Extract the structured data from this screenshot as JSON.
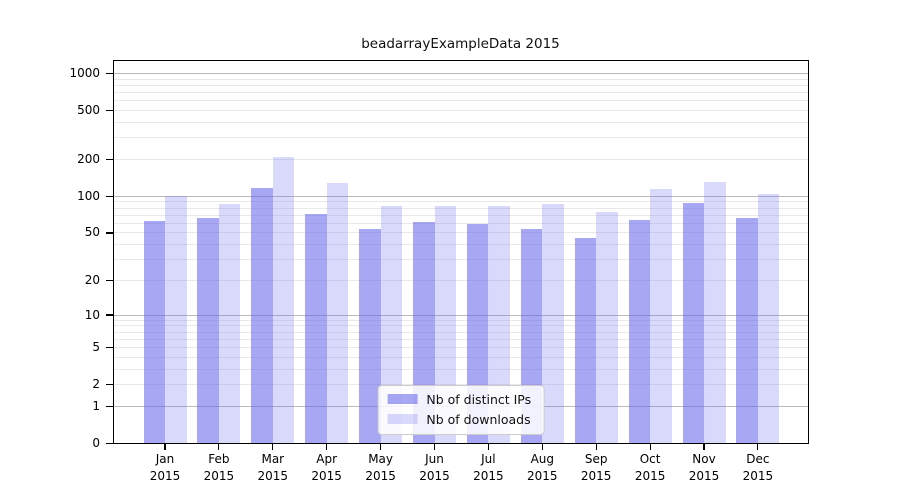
{
  "figure": {
    "background": "#ffffff"
  },
  "chart_data": {
    "type": "bar",
    "title": "beadarrayExampleData 2015",
    "x_categories": [
      "Jan",
      "Feb",
      "Mar",
      "Apr",
      "May",
      "Jun",
      "Jul",
      "Aug",
      "Sep",
      "Oct",
      "Nov",
      "Dec"
    ],
    "x_tick_second_line": "2015",
    "series": [
      {
        "name": "Nb of distinct IPs",
        "color": "#6464eb",
        "opacity": 0.57,
        "values": [
          63,
          67,
          116,
          71,
          54,
          62,
          59,
          54,
          45,
          64,
          88,
          67
        ]
      },
      {
        "name": "Nb of downloads",
        "color": "#7878f0",
        "opacity": 0.28,
        "values": [
          101,
          87,
          210,
          129,
          84,
          84,
          83,
          87,
          75,
          115,
          131,
          104
        ]
      }
    ],
    "y_scale": "log1p",
    "y_ticks": [
      1000,
      500,
      200,
      100,
      50,
      20,
      10,
      5,
      2,
      1,
      0
    ],
    "y_range": [
      0,
      1000
    ],
    "grid": {
      "major_color": "#b9b9b9",
      "minor_color": "#e9e9e9",
      "enabled": true
    },
    "legend_position": "lower center"
  }
}
